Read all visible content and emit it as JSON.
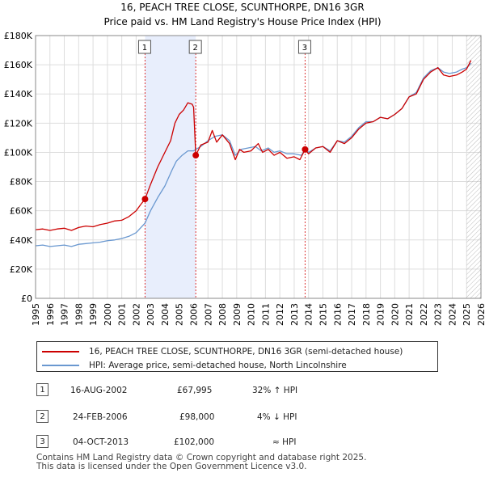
{
  "chart_data": {
    "type": "line",
    "title": "16, PEACH TREE CLOSE, SCUNTHORPE, DN16 3GR",
    "subtitle": "Price paid vs. HM Land Registry's House Price Index (HPI)",
    "xlim": [
      1995,
      2026
    ],
    "ylim": [
      0,
      180000
    ],
    "x_ticks": [
      "1995",
      "1996",
      "1997",
      "1998",
      "1999",
      "2000",
      "2001",
      "2002",
      "2003",
      "2004",
      "2005",
      "2006",
      "2007",
      "2008",
      "2009",
      "2010",
      "2011",
      "2012",
      "2013",
      "2014",
      "2015",
      "2016",
      "2017",
      "2018",
      "2019",
      "2020",
      "2021",
      "2022",
      "2023",
      "2024",
      "2025",
      "2026"
    ],
    "y_ticks": [
      {
        "value": 0,
        "label": "£0"
      },
      {
        "value": 20000,
        "label": "£20K"
      },
      {
        "value": 40000,
        "label": "£40K"
      },
      {
        "value": 60000,
        "label": "£60K"
      },
      {
        "value": 80000,
        "label": "£80K"
      },
      {
        "value": 100000,
        "label": "£100K"
      },
      {
        "value": 120000,
        "label": "£120K"
      },
      {
        "value": 140000,
        "label": "£140K"
      },
      {
        "value": 160000,
        "label": "£160K"
      },
      {
        "value": 180000,
        "label": "£180K"
      }
    ],
    "series": [
      {
        "name": "16, PEACH TREE CLOSE, SCUNTHORPE, DN16 3GR (semi-detached house)",
        "color": "#cc0000",
        "points": [
          [
            1995.0,
            47000
          ],
          [
            1995.5,
            47500
          ],
          [
            1996.0,
            46500
          ],
          [
            1996.5,
            47500
          ],
          [
            1997.0,
            48000
          ],
          [
            1997.5,
            46500
          ],
          [
            1998.0,
            48500
          ],
          [
            1998.5,
            49500
          ],
          [
            1999.0,
            49000
          ],
          [
            1999.5,
            50500
          ],
          [
            2000.0,
            51500
          ],
          [
            2000.5,
            53000
          ],
          [
            2001.0,
            53500
          ],
          [
            2001.5,
            56000
          ],
          [
            2002.0,
            60000
          ],
          [
            2002.3,
            64000
          ],
          [
            2002.62,
            67995
          ],
          [
            2003.0,
            78000
          ],
          [
            2003.5,
            90000
          ],
          [
            2004.0,
            100000
          ],
          [
            2004.4,
            108000
          ],
          [
            2004.7,
            120000
          ],
          [
            2005.0,
            126000
          ],
          [
            2005.3,
            129000
          ],
          [
            2005.6,
            134000
          ],
          [
            2005.9,
            133000
          ],
          [
            2006.0,
            131000
          ],
          [
            2006.15,
            98000
          ],
          [
            2006.5,
            105000
          ],
          [
            2007.0,
            107000
          ],
          [
            2007.3,
            115000
          ],
          [
            2007.6,
            107000
          ],
          [
            2008.0,
            112000
          ],
          [
            2008.5,
            106000
          ],
          [
            2008.9,
            95000
          ],
          [
            2009.2,
            102000
          ],
          [
            2009.5,
            100000
          ],
          [
            2010.0,
            101000
          ],
          [
            2010.5,
            106000
          ],
          [
            2010.8,
            100000
          ],
          [
            2011.2,
            102000
          ],
          [
            2011.6,
            98000
          ],
          [
            2012.0,
            100000
          ],
          [
            2012.5,
            96000
          ],
          [
            2013.0,
            97000
          ],
          [
            2013.4,
            95000
          ],
          [
            2013.76,
            102000
          ],
          [
            2014.0,
            99000
          ],
          [
            2014.5,
            103000
          ],
          [
            2015.0,
            104000
          ],
          [
            2015.5,
            100000
          ],
          [
            2016.0,
            108000
          ],
          [
            2016.5,
            106000
          ],
          [
            2017.0,
            110000
          ],
          [
            2017.5,
            116000
          ],
          [
            2018.0,
            120000
          ],
          [
            2018.5,
            121000
          ],
          [
            2019.0,
            124000
          ],
          [
            2019.5,
            123000
          ],
          [
            2020.0,
            126000
          ],
          [
            2020.5,
            130000
          ],
          [
            2021.0,
            138000
          ],
          [
            2021.5,
            140000
          ],
          [
            2022.0,
            150000
          ],
          [
            2022.5,
            155000
          ],
          [
            2023.0,
            158000
          ],
          [
            2023.4,
            153000
          ],
          [
            2023.8,
            152000
          ],
          [
            2024.3,
            153000
          ],
          [
            2024.7,
            155000
          ],
          [
            2025.0,
            157000
          ],
          [
            2025.3,
            163000
          ]
        ]
      },
      {
        "name": "HPI: Average price, semi-detached house, North Lincolnshire",
        "color": "#6a98d0",
        "points": [
          [
            1995.0,
            36000
          ],
          [
            1995.5,
            36500
          ],
          [
            1996.0,
            35500
          ],
          [
            1996.5,
            36000
          ],
          [
            1997.0,
            36500
          ],
          [
            1997.5,
            35500
          ],
          [
            1998.0,
            37000
          ],
          [
            1998.5,
            37500
          ],
          [
            1999.0,
            38000
          ],
          [
            1999.5,
            38500
          ],
          [
            2000.0,
            39500
          ],
          [
            2000.5,
            40000
          ],
          [
            2001.0,
            41000
          ],
          [
            2001.5,
            42500
          ],
          [
            2002.0,
            45000
          ],
          [
            2002.62,
            51500
          ],
          [
            2003.0,
            60000
          ],
          [
            2003.5,
            69000
          ],
          [
            2004.0,
            77000
          ],
          [
            2004.5,
            88000
          ],
          [
            2004.8,
            94000
          ],
          [
            2005.2,
            98000
          ],
          [
            2005.6,
            101000
          ],
          [
            2006.0,
            101000
          ],
          [
            2006.15,
            102000
          ],
          [
            2006.5,
            104000
          ],
          [
            2007.0,
            108000
          ],
          [
            2007.5,
            111000
          ],
          [
            2008.0,
            112000
          ],
          [
            2008.5,
            108000
          ],
          [
            2008.9,
            98000
          ],
          [
            2009.3,
            102000
          ],
          [
            2009.8,
            103000
          ],
          [
            2010.3,
            104000
          ],
          [
            2010.7,
            101000
          ],
          [
            2011.2,
            103000
          ],
          [
            2011.6,
            100000
          ],
          [
            2012.0,
            101000
          ],
          [
            2012.5,
            99000
          ],
          [
            2013.0,
            99000
          ],
          [
            2013.5,
            98000
          ],
          [
            2013.76,
            102000
          ],
          [
            2014.0,
            100000
          ],
          [
            2014.5,
            103000
          ],
          [
            2015.0,
            104000
          ],
          [
            2015.5,
            101000
          ],
          [
            2016.0,
            108000
          ],
          [
            2016.5,
            107000
          ],
          [
            2017.0,
            111000
          ],
          [
            2017.5,
            117000
          ],
          [
            2018.0,
            121000
          ],
          [
            2018.5,
            121000
          ],
          [
            2019.0,
            124000
          ],
          [
            2019.5,
            123000
          ],
          [
            2020.0,
            126000
          ],
          [
            2020.5,
            130000
          ],
          [
            2021.0,
            138000
          ],
          [
            2021.5,
            141000
          ],
          [
            2022.0,
            151000
          ],
          [
            2022.5,
            156000
          ],
          [
            2023.0,
            158000
          ],
          [
            2023.4,
            155000
          ],
          [
            2023.8,
            154000
          ],
          [
            2024.3,
            155000
          ],
          [
            2024.7,
            157000
          ],
          [
            2025.0,
            158000
          ],
          [
            2025.3,
            161000
          ]
        ]
      }
    ],
    "sales": [
      {
        "id": "1",
        "x": 2002.62,
        "price": 67995
      },
      {
        "id": "2",
        "x": 2006.15,
        "price": 98000
      },
      {
        "id": "3",
        "x": 2013.76,
        "price": 102000
      }
    ],
    "future_hatch_from": 2025.0,
    "colors": {
      "shade": "#e8eefc",
      "marker_line": "#dd3333",
      "grid": "#dddddd"
    }
  },
  "legend": {
    "property_label": "16, PEACH TREE CLOSE, SCUNTHORPE, DN16 3GR (semi-detached house)",
    "hpi_label": "HPI: Average price, semi-detached house, North Lincolnshire"
  },
  "sales_table": [
    {
      "id": "1",
      "date": "16-AUG-2002",
      "price": "£67,995",
      "hpi": "32% ↑ HPI"
    },
    {
      "id": "2",
      "date": "24-FEB-2006",
      "price": "£98,000",
      "hpi": "4% ↓ HPI"
    },
    {
      "id": "3",
      "date": "04-OCT-2013",
      "price": "£102,000",
      "hpi": "≈ HPI"
    }
  ],
  "footer": {
    "line1": "Contains HM Land Registry data © Crown copyright and database right 2025.",
    "line2": "This data is licensed under the Open Government Licence v3.0."
  }
}
